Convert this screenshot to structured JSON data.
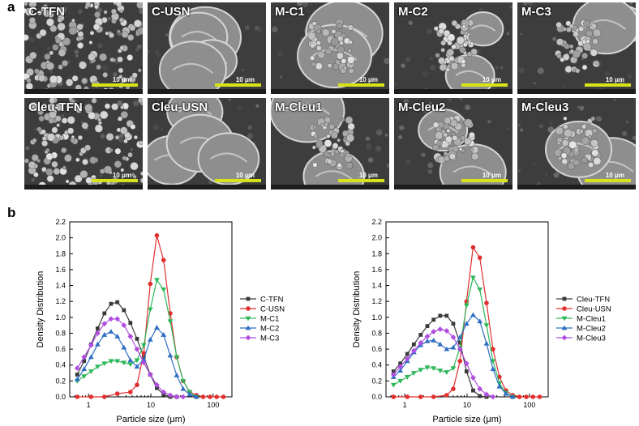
{
  "panels": {
    "a": "a",
    "b": "b"
  },
  "sem": {
    "scale_label": "10 μm",
    "tiles": [
      {
        "label": "C-TFN",
        "kind": "agglomerate"
      },
      {
        "label": "C-USN",
        "kind": "wrinkled"
      },
      {
        "label": "M-C1",
        "kind": "mixed"
      },
      {
        "label": "M-C2",
        "kind": "mixed"
      },
      {
        "label": "M-C3",
        "kind": "mixed"
      },
      {
        "label": "Cleu-TFN",
        "kind": "agglomerate"
      },
      {
        "label": "Cleu-USN",
        "kind": "wrinkled"
      },
      {
        "label": "M-Cleu1",
        "kind": "mixed"
      },
      {
        "label": "M-Cleu2",
        "kind": "mixed"
      },
      {
        "label": "M-Cleu3",
        "kind": "mixed"
      }
    ]
  },
  "chart_data": [
    {
      "type": "line",
      "xlabel": "Particle size (μm)",
      "ylabel": "Density Distribution",
      "xscale": "log",
      "xlim": [
        0.5,
        200
      ],
      "ylim": [
        0,
        2.2
      ],
      "yticks": [
        "0.0",
        "0.2",
        "0.4",
        "0.6",
        "0.8",
        "1.0",
        "1.2",
        "1.4",
        "1.6",
        "1.8",
        "2.0",
        "2.2"
      ],
      "xticks": [
        {
          "value": 1,
          "label": "1"
        },
        {
          "value": 10,
          "label": "10"
        },
        {
          "value": 100,
          "label": "100"
        }
      ],
      "legend_position": "right",
      "grid": false,
      "series": [
        {
          "name": "C-TFN",
          "color": "#3a3a3a",
          "marker": "square",
          "x": [
            0.66,
            0.85,
            1.1,
            1.4,
            1.8,
            2.3,
            2.9,
            3.7,
            4.7,
            6.0,
            7.7,
            9.8,
            12.5,
            16,
            20.5,
            26
          ],
          "y": [
            0.28,
            0.45,
            0.66,
            0.86,
            1.05,
            1.17,
            1.19,
            1.09,
            0.93,
            0.73,
            0.5,
            0.28,
            0.11,
            0.03,
            0.0,
            0.0
          ]
        },
        {
          "name": "C-USN",
          "color": "#e03030",
          "marker": "circle",
          "x": [
            0.66,
            1.1,
            1.8,
            2.9,
            4.7,
            6.0,
            7.7,
            9.8,
            12.5,
            16,
            20.5,
            26,
            33,
            42,
            54,
            69,
            89,
            114,
            146
          ],
          "y": [
            0.0,
            0.0,
            0.0,
            0.04,
            0.06,
            0.15,
            0.55,
            1.42,
            2.03,
            1.72,
            1.05,
            0.5,
            0.2,
            0.06,
            0.02,
            0.0,
            0.0,
            0.0,
            0.0
          ]
        },
        {
          "name": "M-C1",
          "color": "#2db85a",
          "marker": "triangle-down",
          "x": [
            0.66,
            0.85,
            1.1,
            1.4,
            1.8,
            2.3,
            2.9,
            3.7,
            4.7,
            6.0,
            7.7,
            9.8,
            12.5,
            16,
            20.5,
            26,
            33,
            42,
            54
          ],
          "y": [
            0.2,
            0.26,
            0.32,
            0.38,
            0.42,
            0.45,
            0.45,
            0.43,
            0.41,
            0.46,
            0.65,
            1.1,
            1.47,
            1.35,
            0.95,
            0.5,
            0.2,
            0.06,
            0.0
          ]
        },
        {
          "name": "M-C2",
          "color": "#2f6ec2",
          "marker": "triangle-up",
          "x": [
            0.66,
            0.85,
            1.1,
            1.4,
            1.8,
            2.3,
            2.9,
            3.7,
            4.7,
            6.0,
            7.7,
            9.8,
            12.5,
            16,
            20.5,
            26,
            33,
            42,
            54
          ],
          "y": [
            0.22,
            0.35,
            0.5,
            0.66,
            0.78,
            0.82,
            0.76,
            0.62,
            0.46,
            0.38,
            0.47,
            0.72,
            0.87,
            0.78,
            0.52,
            0.27,
            0.1,
            0.03,
            0.0
          ]
        },
        {
          "name": "M-C3",
          "color": "#b04ee0",
          "marker": "diamond",
          "x": [
            0.66,
            0.85,
            1.1,
            1.4,
            1.8,
            2.3,
            2.9,
            3.7,
            4.7,
            6.0,
            7.7,
            9.8,
            12.5,
            16,
            20.5,
            26,
            33
          ],
          "y": [
            0.36,
            0.5,
            0.65,
            0.8,
            0.92,
            0.98,
            0.98,
            0.9,
            0.76,
            0.6,
            0.43,
            0.28,
            0.15,
            0.06,
            0.02,
            0.0,
            0.0
          ]
        }
      ]
    },
    {
      "type": "line",
      "xlabel": "Particle size (μm)",
      "ylabel": "Density Distribution",
      "xscale": "log",
      "xlim": [
        0.5,
        200
      ],
      "ylim": [
        0,
        2.2
      ],
      "yticks": [
        "0.0",
        "0.2",
        "0.4",
        "0.6",
        "0.8",
        "1.0",
        "1.2",
        "1.4",
        "1.6",
        "1.8",
        "2.0",
        "2.2"
      ],
      "xticks": [
        {
          "value": 1,
          "label": "1"
        },
        {
          "value": 10,
          "label": "10"
        },
        {
          "value": 100,
          "label": "100"
        }
      ],
      "legend_position": "right",
      "grid": false,
      "series": [
        {
          "name": "Cleu-TFN",
          "color": "#3a3a3a",
          "marker": "square",
          "x": [
            0.66,
            0.85,
            1.1,
            1.4,
            1.8,
            2.3,
            2.9,
            3.7,
            4.7,
            6.0,
            7.7,
            9.8,
            12.5,
            16,
            20.5
          ],
          "y": [
            0.32,
            0.42,
            0.54,
            0.66,
            0.78,
            0.89,
            0.97,
            1.02,
            1.02,
            0.92,
            0.68,
            0.32,
            0.08,
            0.01,
            0.0
          ]
        },
        {
          "name": "Cleu-USN",
          "color": "#e03030",
          "marker": "circle",
          "x": [
            0.66,
            1.1,
            1.8,
            2.9,
            4.7,
            6.0,
            7.7,
            9.8,
            12.5,
            16,
            20.5,
            26,
            33,
            42,
            54,
            69,
            89,
            114,
            146
          ],
          "y": [
            0.0,
            0.0,
            0.0,
            0.0,
            0.02,
            0.1,
            0.45,
            1.2,
            1.88,
            1.75,
            1.18,
            0.6,
            0.25,
            0.08,
            0.02,
            0.0,
            0.0,
            0.0,
            0.0
          ]
        },
        {
          "name": "M-Cleu1",
          "color": "#2db85a",
          "marker": "triangle-down",
          "x": [
            0.66,
            0.85,
            1.1,
            1.4,
            1.8,
            2.3,
            2.9,
            3.7,
            4.7,
            6.0,
            7.7,
            9.8,
            12.5,
            16,
            20.5,
            26,
            33,
            42,
            54
          ],
          "y": [
            0.15,
            0.2,
            0.25,
            0.3,
            0.34,
            0.37,
            0.36,
            0.33,
            0.31,
            0.36,
            0.62,
            1.15,
            1.5,
            1.35,
            0.9,
            0.45,
            0.17,
            0.05,
            0.0
          ]
        },
        {
          "name": "M-Cleu2",
          "color": "#2f6ec2",
          "marker": "triangle-up",
          "x": [
            0.66,
            0.85,
            1.1,
            1.4,
            1.8,
            2.3,
            2.9,
            3.7,
            4.7,
            6.0,
            7.7,
            9.8,
            12.5,
            16,
            20.5,
            26,
            33,
            42,
            54
          ],
          "y": [
            0.25,
            0.33,
            0.45,
            0.56,
            0.65,
            0.7,
            0.71,
            0.66,
            0.6,
            0.62,
            0.75,
            0.92,
            1.03,
            0.95,
            0.67,
            0.35,
            0.13,
            0.04,
            0.0
          ]
        },
        {
          "name": "M-Cleu3",
          "color": "#b04ee0",
          "marker": "diamond",
          "x": [
            0.66,
            0.85,
            1.1,
            1.4,
            1.8,
            2.3,
            2.9,
            3.7,
            4.7,
            6.0,
            7.7,
            9.8,
            12.5,
            16,
            20.5,
            26
          ],
          "y": [
            0.28,
            0.38,
            0.48,
            0.58,
            0.68,
            0.76,
            0.82,
            0.85,
            0.83,
            0.75,
            0.6,
            0.42,
            0.24,
            0.1,
            0.03,
            0.0
          ]
        }
      ]
    }
  ]
}
